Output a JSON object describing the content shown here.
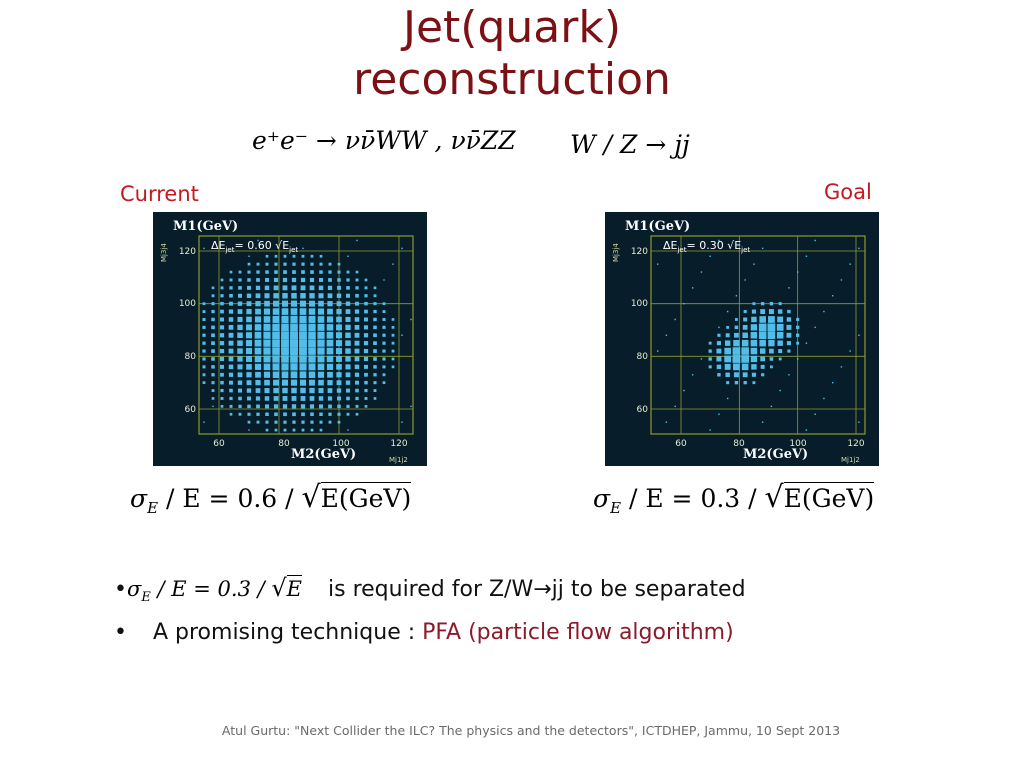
{
  "slide": {
    "title_line1": "Jet(quark)",
    "title_line2": "reconstruction",
    "process_equation": "e⁺e⁻ → νν̄WW , νν̄ZZ",
    "decay_equation": "W / Z → jj",
    "label_current": "Current",
    "label_goal": "Goal",
    "plots": [
      {
        "y_axis_title": "M1(GeV)",
        "x_axis_title": "M2(GeV)",
        "y_side_label": "Mj3j4",
        "x_corner_label": "Mj1j2",
        "resolution_label": "ΔE",
        "resolution_sub": "jet",
        "resolution_value": "= 0.60 √E",
        "resolution_value_sub": "jet",
        "x_ticks": [
          "60",
          "80",
          "100",
          "120"
        ],
        "y_ticks": [
          "60",
          "80",
          "100",
          "120"
        ]
      },
      {
        "y_axis_title": "M1(GeV)",
        "x_axis_title": "M2(GeV)",
        "y_side_label": "Mj3j4",
        "x_corner_label": "Mj1j2",
        "resolution_label": "ΔE",
        "resolution_sub": "jet",
        "resolution_value": "= 0.30 √E",
        "resolution_value_sub": "jet",
        "x_ticks": [
          "60",
          "80",
          "100",
          "120"
        ],
        "y_ticks": [
          "60",
          "80",
          "100",
          "120"
        ]
      }
    ],
    "formula_left": {
      "sigma": "σ",
      "sub": "E",
      "mid": " / E = 0.6 / ",
      "root": "E(GeV)"
    },
    "formula_right": {
      "sigma": "σ",
      "sub": "E",
      "mid": " / E = 0.3 / ",
      "root": "E(GeV)"
    },
    "bullets": [
      {
        "marker": "•",
        "sigma": "σ",
        "sub": "E",
        "mid": " / E = 0.3 / ",
        "root": "E",
        "text": "is required for Z/W→jj to be separated"
      },
      {
        "marker": "•",
        "text_black": "A promising technique : ",
        "text_red": "PFA (particle flow algorithm)"
      }
    ],
    "footer": "Atul Gurtu: \"Next Collider the ILC? The physics and the detectors\", ICTDHEP, Jammu, 10 Sept 2013"
  },
  "colors": {
    "title": "#7b1115",
    "caption": "#c3191f",
    "plot_background": "#071e2a",
    "grid": "#8f9a2a",
    "marker": "#52bde8",
    "accent_text": "#8b1a2b"
  }
}
